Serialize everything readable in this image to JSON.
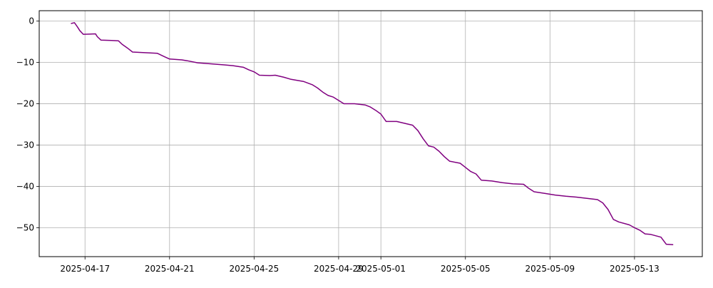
{
  "chart_data": {
    "type": "line",
    "title": "",
    "xlabel": "",
    "ylabel": "",
    "x_tick_labels": [
      "2025-04-17",
      "2025-04-21",
      "2025-04-25",
      "2025-04-29",
      "2025-05-01",
      "2025-05-05",
      "2025-05-09",
      "2025-05-13"
    ],
    "y_tick_labels": [
      "0",
      "−10",
      "−20",
      "−30",
      "−40",
      "−50"
    ],
    "x_ticks": [
      "2025-04-17",
      "2025-04-21",
      "2025-04-25",
      "2025-04-29",
      "2025-05-01",
      "2025-05-05",
      "2025-05-09",
      "2025-05-13"
    ],
    "y_ticks": [
      0,
      -10,
      -20,
      -30,
      -40,
      -50
    ],
    "xlim": [
      "2025-04-14T20:00",
      "2025-05-16T05:00"
    ],
    "ylim": [
      -57,
      2.5
    ],
    "grid": true,
    "colors": {
      "line": "#800080",
      "grid": "#b0b0b0",
      "axis": "#000000"
    },
    "series": [
      {
        "name": "",
        "points": [
          [
            "2025-04-16T08:00",
            -0.6
          ],
          [
            "2025-04-16T12:00",
            -0.4
          ],
          [
            "2025-04-16T14:00",
            -1.0
          ],
          [
            "2025-04-16T16:00",
            -1.6
          ],
          [
            "2025-04-16T18:00",
            -2.3
          ],
          [
            "2025-04-16T22:00",
            -3.2
          ],
          [
            "2025-04-17T12:00",
            -3.1
          ],
          [
            "2025-04-17T14:00",
            -3.8
          ],
          [
            "2025-04-17T18:00",
            -4.6
          ],
          [
            "2025-04-18T06:00",
            -4.7
          ],
          [
            "2025-04-18T14:00",
            -4.8
          ],
          [
            "2025-04-18T18:00",
            -5.6
          ],
          [
            "2025-04-19T00:00",
            -6.5
          ],
          [
            "2025-04-19T06:00",
            -7.5
          ],
          [
            "2025-04-20T10:00",
            -7.8
          ],
          [
            "2025-04-20T18:00",
            -8.6
          ],
          [
            "2025-04-21T00:00",
            -9.2
          ],
          [
            "2025-04-21T14:00",
            -9.4
          ],
          [
            "2025-04-21T20:00",
            -9.6
          ],
          [
            "2025-04-22T08:00",
            -10.1
          ],
          [
            "2025-04-22T20:00",
            -10.3
          ],
          [
            "2025-04-23T14:00",
            -10.6
          ],
          [
            "2025-04-24T00:00",
            -10.8
          ],
          [
            "2025-04-24T12:00",
            -11.2
          ],
          [
            "2025-04-24T18:00",
            -11.8
          ],
          [
            "2025-04-25T00:00",
            -12.3
          ],
          [
            "2025-04-25T06:00",
            -13.1
          ],
          [
            "2025-04-25T18:00",
            -13.2
          ],
          [
            "2025-04-26T00:00",
            -13.1
          ],
          [
            "2025-04-26T10:00",
            -13.6
          ],
          [
            "2025-04-26T18:00",
            -14.1
          ],
          [
            "2025-04-27T08:00",
            -14.6
          ],
          [
            "2025-04-27T18:00",
            -15.4
          ],
          [
            "2025-04-28T00:00",
            -16.2
          ],
          [
            "2025-04-28T06:00",
            -17.2
          ],
          [
            "2025-04-28T12:00",
            -18.0
          ],
          [
            "2025-04-28T18:00",
            -18.4
          ],
          [
            "2025-04-29T06:00",
            -20.0
          ],
          [
            "2025-04-29T18:00",
            -20.0
          ],
          [
            "2025-04-30T06:00",
            -20.3
          ],
          [
            "2025-04-30T12:00",
            -20.8
          ],
          [
            "2025-04-30T18:00",
            -21.6
          ],
          [
            "2025-05-01T00:00",
            -22.5
          ],
          [
            "2025-05-01T06:00",
            -24.3
          ],
          [
            "2025-05-01T18:00",
            -24.3
          ],
          [
            "2025-05-02T00:00",
            -24.6
          ],
          [
            "2025-05-02T12:00",
            -25.2
          ],
          [
            "2025-05-02T18:00",
            -26.5
          ],
          [
            "2025-05-03T00:00",
            -28.5
          ],
          [
            "2025-05-03T06:00",
            -30.2
          ],
          [
            "2025-05-03T12:00",
            -30.5
          ],
          [
            "2025-05-03T18:00",
            -31.5
          ],
          [
            "2025-05-04T00:00",
            -32.8
          ],
          [
            "2025-05-04T06:00",
            -33.9
          ],
          [
            "2025-05-04T18:00",
            -34.4
          ],
          [
            "2025-05-05T00:00",
            -35.4
          ],
          [
            "2025-05-05T06:00",
            -36.4
          ],
          [
            "2025-05-05T12:00",
            -37.0
          ],
          [
            "2025-05-05T18:00",
            -38.5
          ],
          [
            "2025-05-06T06:00",
            -38.7
          ],
          [
            "2025-05-06T18:00",
            -39.1
          ],
          [
            "2025-05-07T06:00",
            -39.4
          ],
          [
            "2025-05-07T18:00",
            -39.5
          ],
          [
            "2025-05-08T00:00",
            -40.5
          ],
          [
            "2025-05-08T06:00",
            -41.3
          ],
          [
            "2025-05-08T18:00",
            -41.7
          ],
          [
            "2025-05-09T06:00",
            -42.1
          ],
          [
            "2025-05-09T18:00",
            -42.4
          ],
          [
            "2025-05-10T06:00",
            -42.6
          ],
          [
            "2025-05-10T18:00",
            -42.9
          ],
          [
            "2025-05-11T06:00",
            -43.2
          ],
          [
            "2025-05-11T12:00",
            -44.0
          ],
          [
            "2025-05-11T18:00",
            -45.6
          ],
          [
            "2025-05-12T00:00",
            -48.0
          ],
          [
            "2025-05-12T06:00",
            -48.6
          ],
          [
            "2025-05-12T18:00",
            -49.3
          ],
          [
            "2025-05-13T00:00",
            -50.0
          ],
          [
            "2025-05-13T06:00",
            -50.6
          ],
          [
            "2025-05-13T12:00",
            -51.5
          ],
          [
            "2025-05-13T18:00",
            -51.6
          ],
          [
            "2025-05-14T06:00",
            -52.3
          ],
          [
            "2025-05-14T12:00",
            -54.0
          ],
          [
            "2025-05-14T20:00",
            -54.1
          ]
        ]
      }
    ]
  }
}
